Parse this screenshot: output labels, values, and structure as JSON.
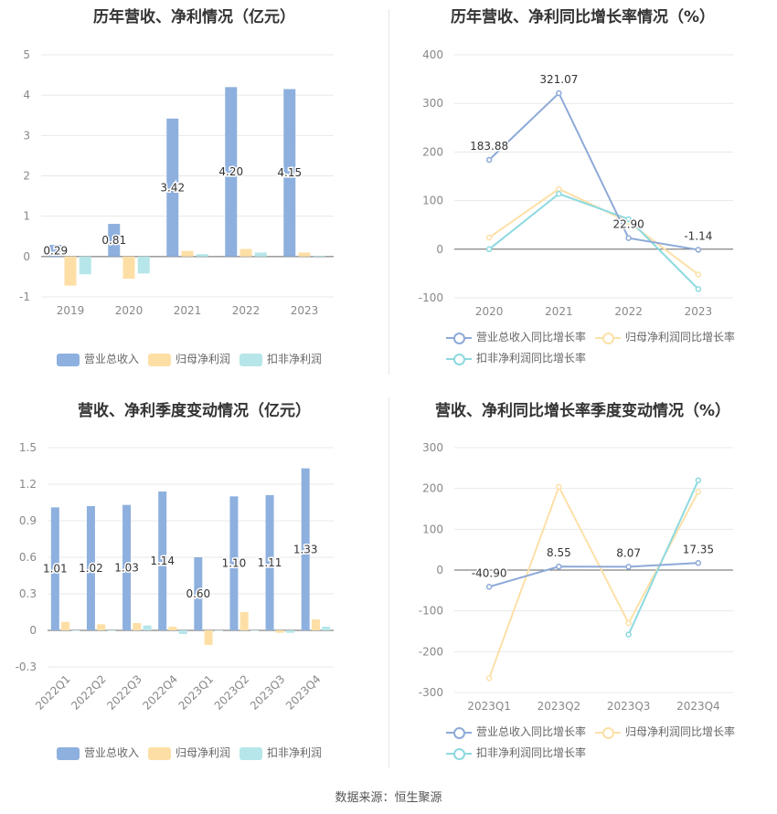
{
  "colors": {
    "revenue": "#8eb0de",
    "parent_profit": "#fddfa6",
    "deducted_profit": "#b6e6ea",
    "revenue_line": "#8eaad8",
    "parent_line": "#fde0a8",
    "deducted_line": "#8dd9e0",
    "grid": "#e8e8e8",
    "axis_text": "#888888",
    "label_text": "#333333"
  },
  "source_text": "数据来源：恒生聚源",
  "chart_data": [
    {
      "type": "bar",
      "title": "历年营收、净利情况（亿元）",
      "categories": [
        "2019",
        "2020",
        "2021",
        "2022",
        "2023"
      ],
      "ylim": [
        -1,
        5
      ],
      "yticks": [
        "-1",
        "0",
        "1",
        "2",
        "3",
        "4",
        "5"
      ],
      "series": [
        {
          "name": "营业总收入",
          "values": [
            0.29,
            0.81,
            3.42,
            4.2,
            4.15
          ],
          "labels": [
            "0.29",
            "0.81",
            "3.42",
            "4.20",
            "4.15"
          ]
        },
        {
          "name": "归母净利润",
          "values": [
            -0.72,
            -0.55,
            0.14,
            0.19,
            0.1
          ]
        },
        {
          "name": "扣非净利润",
          "values": [
            -0.44,
            -0.42,
            0.06,
            0.1,
            0.02
          ]
        }
      ],
      "legend": "bottom",
      "grid": true
    },
    {
      "type": "line",
      "title": "历年营收、净利同比增长率情况（%）",
      "categories": [
        "2020",
        "2021",
        "2022",
        "2023"
      ],
      "ylim": [
        -100,
        400
      ],
      "yticks": [
        "-100",
        "0",
        "100",
        "200",
        "300",
        "400"
      ],
      "series": [
        {
          "name": "营业总收入同比增长率",
          "values": [
            183.88,
            321.07,
            22.9,
            -1.14
          ],
          "labels": [
            "183.88",
            "321.07",
            "22.90",
            "-1.14"
          ]
        },
        {
          "name": "归母净利润同比增长率",
          "values": [
            24,
            124,
            56,
            -52
          ]
        },
        {
          "name": "扣非净利润同比增长率",
          "values": [
            0,
            114,
            62,
            -82
          ]
        }
      ],
      "legend": "bottom",
      "grid": true
    },
    {
      "type": "bar",
      "title": "营收、净利季度变动情况（亿元）",
      "categories": [
        "2022Q1",
        "2022Q2",
        "2022Q3",
        "2022Q4",
        "2023Q1",
        "2023Q2",
        "2023Q3",
        "2023Q4"
      ],
      "ylim": [
        -0.3,
        1.5
      ],
      "yticks": [
        "-0.3",
        "0",
        "0.3",
        "0.6",
        "0.9",
        "1.2",
        "1.5"
      ],
      "series": [
        {
          "name": "营业总收入",
          "values": [
            1.01,
            1.02,
            1.03,
            1.14,
            0.6,
            1.1,
            1.11,
            1.33
          ],
          "labels": [
            "1.01",
            "1.02",
            "1.03",
            "1.14",
            "0.60",
            "1.10",
            "1.11",
            "1.33"
          ]
        },
        {
          "name": "归母净利润",
          "values": [
            0.07,
            0.05,
            0.06,
            0.03,
            -0.12,
            0.15,
            -0.02,
            0.09
          ]
        },
        {
          "name": "扣非净利润",
          "values": [
            0.0,
            0.0,
            0.04,
            -0.03,
            0.0,
            0.0,
            -0.02,
            0.03
          ]
        }
      ],
      "legend": "bottom",
      "grid": true
    },
    {
      "type": "line",
      "title": "营收、净利同比增长率季度变动情况（%）",
      "categories": [
        "2023Q1",
        "2023Q2",
        "2023Q3",
        "2023Q4"
      ],
      "ylim": [
        -300,
        300
      ],
      "yticks": [
        "-300",
        "-200",
        "-100",
        "0",
        "100",
        "200",
        "300"
      ],
      "series": [
        {
          "name": "营业总收入同比增长率",
          "values": [
            -40.9,
            8.55,
            8.07,
            17.35
          ],
          "labels": [
            "-40.90",
            "8.55",
            "8.07",
            "17.35"
          ]
        },
        {
          "name": "归母净利润同比增长率",
          "values": [
            -265,
            204,
            -130,
            192
          ]
        },
        {
          "name": "扣非净利润同比增长率",
          "values": [
            null,
            null,
            -158,
            220
          ]
        }
      ],
      "legend": "bottom",
      "grid": true
    }
  ]
}
